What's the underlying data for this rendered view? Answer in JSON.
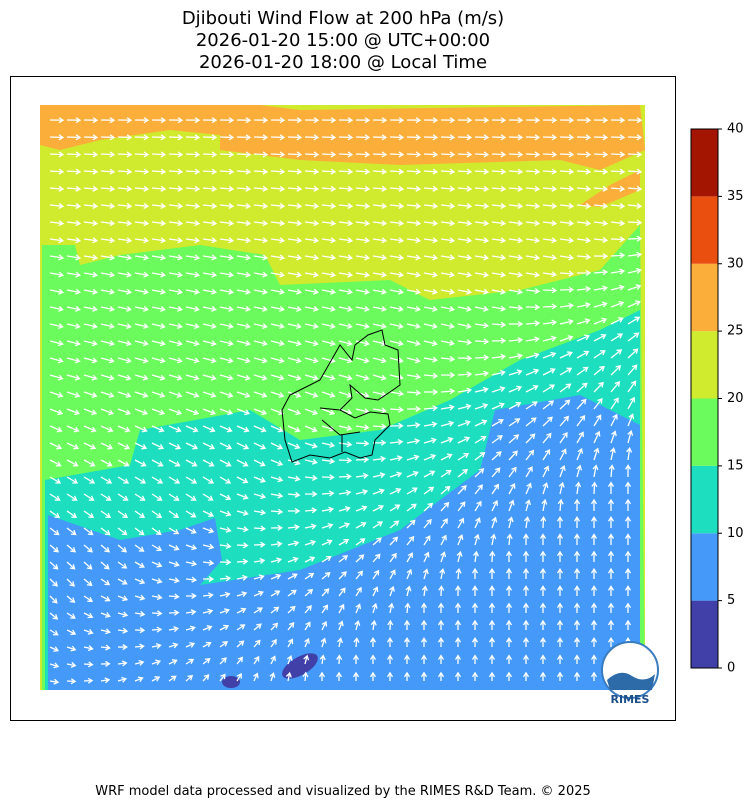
{
  "title": [
    "Djibouti Wind Flow at 200 hPa (m/s)",
    "2026-01-20 15:00 @ UTC+00:00",
    "2026-01-20 18:00 @ Local Time"
  ],
  "colorbar": {
    "ticks": [
      0,
      5,
      10,
      15,
      20,
      25,
      30,
      35,
      40
    ],
    "colors": [
      "#4040a8",
      "#4499f9",
      "#1ddfbf",
      "#6bfb5c",
      "#d0ea2e",
      "#fcae3a",
      "#ea4f10",
      "#a31500"
    ]
  },
  "logo": "RIMES",
  "footer": "WRF model data processed and visualized by the RIMES R&D Team. © 2025"
}
